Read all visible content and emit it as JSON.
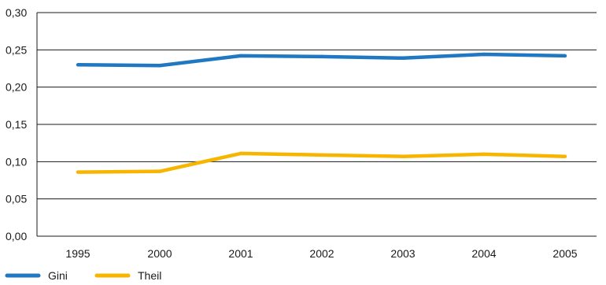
{
  "chart_data": {
    "type": "line",
    "categories": [
      "1995",
      "2000",
      "2001",
      "2002",
      "2003",
      "2004",
      "2005"
    ],
    "series": [
      {
        "name": "Gini",
        "color": "#1f78c1",
        "values": [
          0.23,
          0.229,
          0.242,
          0.241,
          0.239,
          0.244,
          0.242
        ]
      },
      {
        "name": "Theil",
        "color": "#f7b500",
        "values": [
          0.086,
          0.087,
          0.111,
          0.109,
          0.107,
          0.11,
          0.107
        ]
      }
    ],
    "ylim": [
      0,
      0.3
    ],
    "yticks": [
      0,
      0.05,
      0.1,
      0.15,
      0.2,
      0.25,
      0.3
    ],
    "ytick_labels": [
      "0,00",
      "0,05",
      "0,10",
      "0,15",
      "0,20",
      "0,25",
      "0,30"
    ],
    "grid": "horizontal",
    "legend_position": "bottom-left",
    "title": "",
    "xlabel": "",
    "ylabel": ""
  }
}
